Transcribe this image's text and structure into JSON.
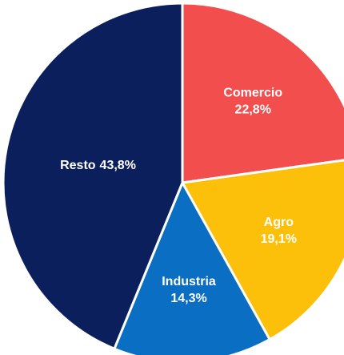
{
  "chart_data": {
    "type": "pie",
    "categories": [
      "Comercio",
      "Agro",
      "Industria",
      "Resto"
    ],
    "values": [
      22.8,
      19.1,
      14.3,
      43.8
    ],
    "value_labels": [
      "22,8%",
      "19,1%",
      "14,3%",
      "43,8%"
    ],
    "colors": [
      "#f24e4e",
      "#fcbf0a",
      "#0a6fc2",
      "#0b1f5c"
    ]
  }
}
